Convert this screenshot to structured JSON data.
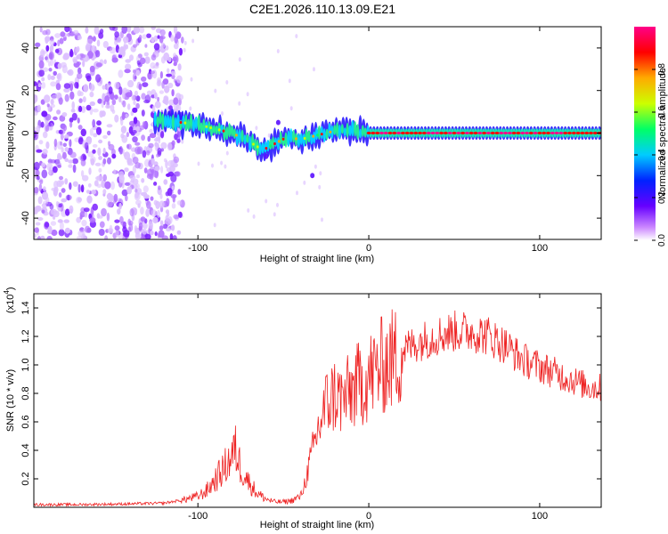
{
  "title": "C2E1.2026.110.13.09.E21",
  "chart_data": [
    {
      "type": "heatmap",
      "id": "spectrogram",
      "xlabel": "Height of straight line (km)",
      "ylabel": "Frequency (Hz)",
      "xlim": [
        -196,
        136
      ],
      "ylim": [
        -50,
        50
      ],
      "xticks": [
        -100,
        0,
        100
      ],
      "yticks": [
        -40,
        -20,
        0,
        20,
        40
      ],
      "noise_region_x": [
        -196,
        -115
      ],
      "ridge": [
        {
          "x": -125,
          "f": 6
        },
        {
          "x": -110,
          "f": 5
        },
        {
          "x": -100,
          "f": 4
        },
        {
          "x": -90,
          "f": 2
        },
        {
          "x": -80,
          "f": 0
        },
        {
          "x": -70,
          "f": -4
        },
        {
          "x": -62,
          "f": -8
        },
        {
          "x": -55,
          "f": -5
        },
        {
          "x": -48,
          "f": -2
        },
        {
          "x": -40,
          "f": -3
        },
        {
          "x": -30,
          "f": -1
        },
        {
          "x": -20,
          "f": 1
        },
        {
          "x": -10,
          "f": 1
        },
        {
          "x": 0,
          "f": 0
        },
        {
          "x": 136,
          "f": 0
        }
      ],
      "colorbar": {
        "label": "Normalized spectral amplitude",
        "range": [
          0,
          1
        ],
        "ticks": [
          "0.0",
          "0.2",
          "0.4",
          "0.6",
          "0.8"
        ],
        "tick_values": [
          0.0,
          0.2,
          0.4,
          0.6,
          0.8
        ],
        "colors": [
          "#ffffff",
          "#cc88ff",
          "#6600ff",
          "#0022ff",
          "#00ccff",
          "#00ff66",
          "#ccff00",
          "#ffaa00",
          "#ff0000",
          "#ff0088"
        ]
      }
    },
    {
      "type": "line",
      "id": "snr",
      "xlabel": "Height of straight line (km)",
      "ylabel": "SNR (10 * v/v)",
      "multiplier_label": "(x10",
      "multiplier_exp": "4",
      "xlim": [
        -196,
        136
      ],
      "ylim": [
        0,
        1.5
      ],
      "xticks": [
        -100,
        0,
        100
      ],
      "yticks": [
        0.2,
        0.4,
        0.6,
        0.8,
        1.0,
        1.2,
        1.4
      ],
      "ytick_labels": [
        "0.2",
        "0.4",
        "0.6",
        "0.8",
        "1.0",
        "1.2",
        "1.4"
      ],
      "color": "#ee2222",
      "series": [
        {
          "name": "SNR",
          "x": [
            -196,
            -170,
            -140,
            -120,
            -110,
            -100,
            -95,
            -90,
            -85,
            -80,
            -78,
            -75,
            -70,
            -65,
            -60,
            -55,
            -50,
            -45,
            -40,
            -38,
            -35,
            -32,
            -30,
            -25,
            -20,
            -15,
            -10,
            -5,
            0,
            5,
            10,
            20,
            30,
            40,
            50,
            60,
            70,
            80,
            90,
            100,
            110,
            120,
            130,
            136
          ],
          "y": [
            0.02,
            0.02,
            0.025,
            0.03,
            0.05,
            0.08,
            0.12,
            0.2,
            0.28,
            0.38,
            0.42,
            0.3,
            0.18,
            0.1,
            0.06,
            0.04,
            0.04,
            0.05,
            0.08,
            0.15,
            0.3,
            0.45,
            0.55,
            0.75,
            0.82,
            0.78,
            0.85,
            0.9,
            0.95,
            1.0,
            1.05,
            1.12,
            1.18,
            1.22,
            1.25,
            1.25,
            1.22,
            1.15,
            1.05,
            1.0,
            0.95,
            0.9,
            0.85,
            0.85
          ]
        }
      ]
    }
  ]
}
